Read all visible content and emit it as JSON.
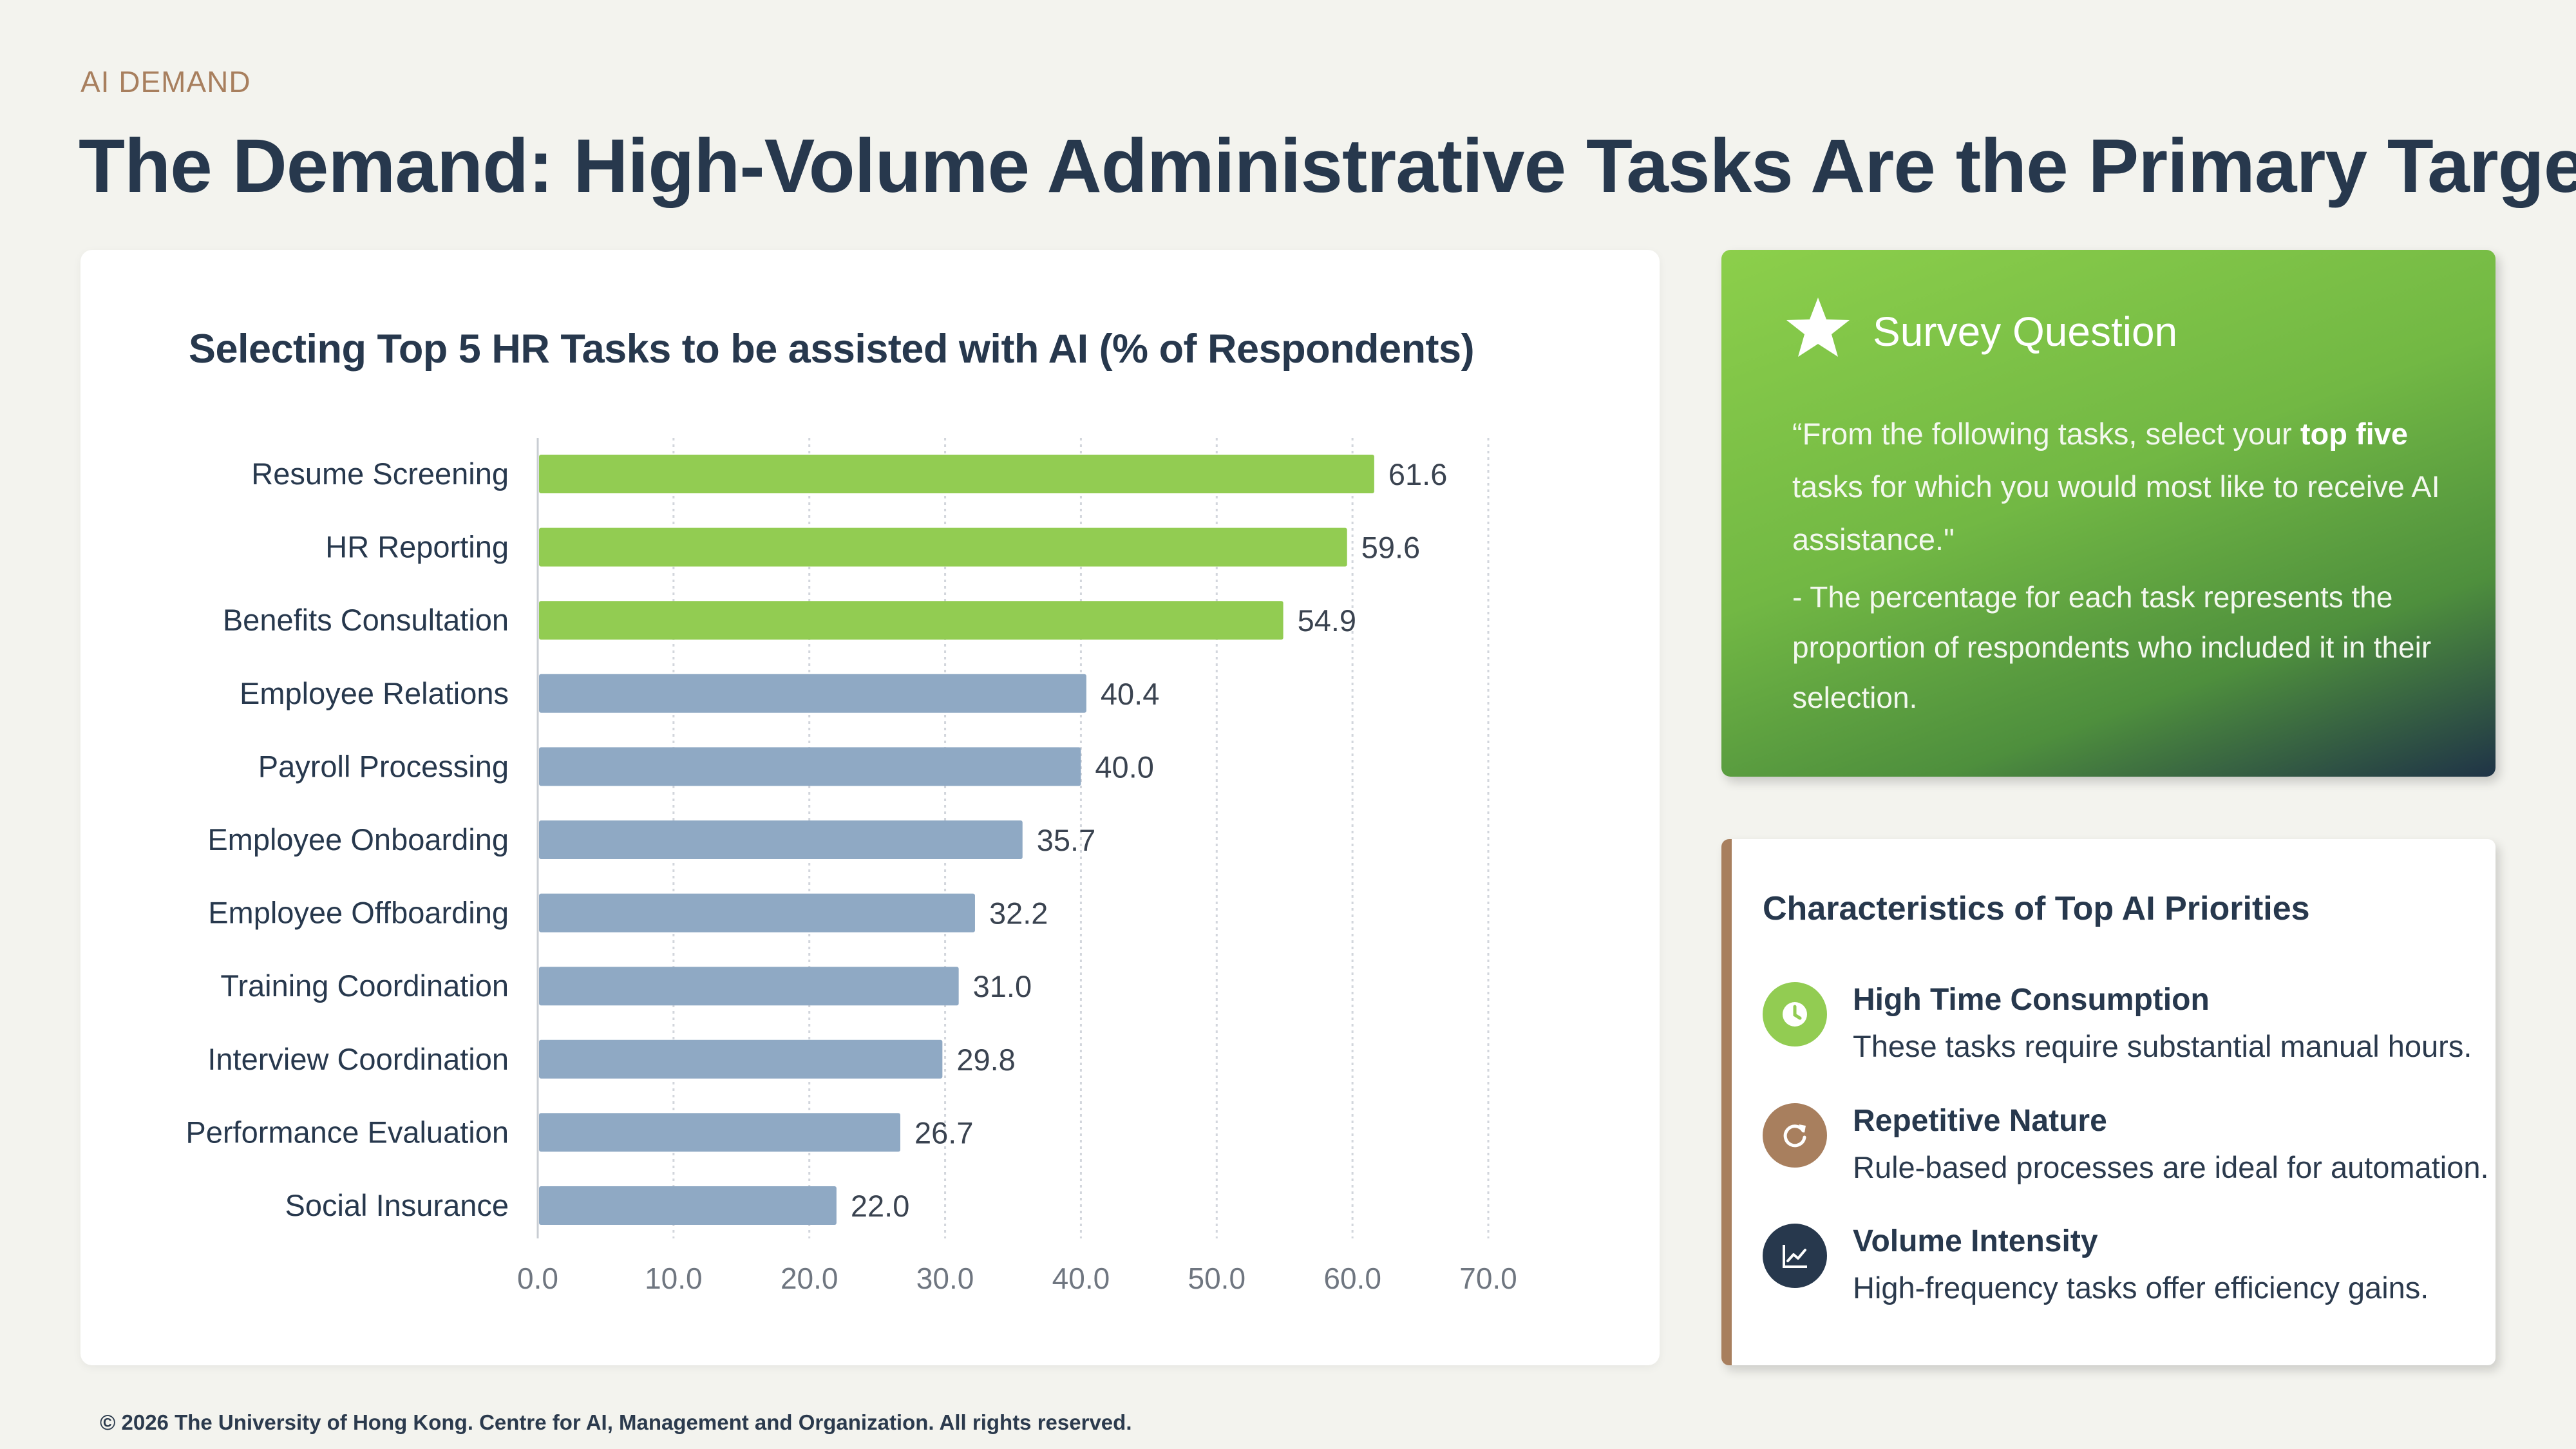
{
  "header": {
    "eyebrow": "AI DEMAND",
    "title": "The Demand: High-Volume Administrative Tasks Are the Primary Target"
  },
  "chart_data": {
    "type": "bar",
    "orientation": "horizontal",
    "title": "Selecting Top 5 HR Tasks to be assisted with AI (% of Respondents)",
    "categories": [
      "Resume Screening",
      "HR Reporting",
      "Benefits Consultation",
      "Employee Relations",
      "Payroll Processing",
      "Employee Onboarding",
      "Employee Offboarding",
      "Training Coordination",
      "Interview Coordination",
      "Performance Evaluation",
      "Social Insurance"
    ],
    "values": [
      61.6,
      59.6,
      54.9,
      40.4,
      40.0,
      35.7,
      32.2,
      31.0,
      29.8,
      26.7,
      22.0
    ],
    "value_labels": [
      "61.6",
      "59.6",
      "54.9",
      "40.4",
      "40.0",
      "35.7",
      "32.2",
      "31.0",
      "29.8",
      "26.7",
      "22.0"
    ],
    "highlight": [
      true,
      true,
      true,
      false,
      false,
      false,
      false,
      false,
      false,
      false,
      false
    ],
    "xlim": [
      0,
      70
    ],
    "x_ticks": [
      "0.0",
      "10.0",
      "20.0",
      "30.0",
      "40.0",
      "50.0",
      "60.0",
      "70.0"
    ],
    "grid": "vertical dotted",
    "colors": {
      "highlight": "#92cc52",
      "base": "#8fa9c4"
    }
  },
  "survey": {
    "title": "Survey Question",
    "quote_before": "“From the following tasks, select your ",
    "quote_bold": "top five",
    "quote_after": " tasks for which you would most like to receive AI assistance.\"",
    "note": "- The percentage for each task represents the proportion of respondents who included it in their selection.",
    "icon": "star-icon"
  },
  "characteristics": {
    "title": "Characteristics of Top AI Priorities",
    "items": [
      {
        "heading": "High Time Consumption",
        "text": "These tasks require substantial manual hours.",
        "icon": "clock-icon",
        "color": "#92cc52"
      },
      {
        "heading": "Repetitive Nature",
        "text": "Rule-based processes are ideal for automation.",
        "icon": "refresh-icon",
        "color": "#a87f5e"
      },
      {
        "heading": "Volume Intensity",
        "text": "High-frequency tasks offer efficiency gains.",
        "icon": "trend-chart-icon",
        "color": "#27384d"
      }
    ]
  },
  "footer": {
    "text": "© 2026 The University of Hong Kong. Centre for AI, Management and Organization. All rights reserved."
  }
}
